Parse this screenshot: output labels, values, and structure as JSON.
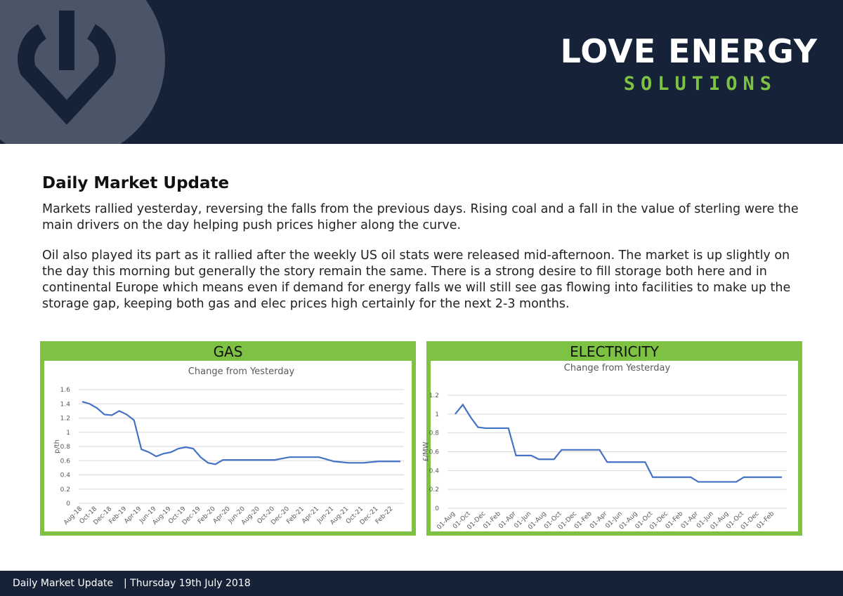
{
  "header": {
    "brand": "LOVE ENERGY",
    "tagline": "SOLUTIONS"
  },
  "article": {
    "title": "Daily Market Update",
    "paragraphs": [
      "Markets rallied yesterday, reversing the falls from the previous days. Rising coal and a fall in the value of sterling were the main drivers on the day helping push prices higher along the curve.",
      "Oil also played its part as it rallied after the weekly US oil stats were released mid-afternoon. The market is up slightly on the day this morning but generally the story remain the same. There is a strong desire to fill storage both here and in continental Europe which means even if demand for energy falls we will still see gas flowing into facilities to make up the storage gap, keeping both gas and elec prices high certainly for the next 2-3 months."
    ]
  },
  "charts": [
    {
      "type": "line",
      "panel_title": "GAS",
      "title": "Change from Yesterday",
      "ylabel": "p/th",
      "color": "#4472c4",
      "categories": [
        "Aug-18",
        null,
        "Oct-18",
        null,
        "Dec-18",
        null,
        "Feb-19",
        null,
        "Apr-19",
        null,
        "Jun-19",
        null,
        "Aug-19",
        null,
        "Oct-19",
        null,
        "Dec-19",
        null,
        "Feb-20",
        null,
        "Apr-20",
        null,
        "Jun-20",
        null,
        "Aug-20",
        null,
        "Oct-20",
        null,
        "Dec-20",
        null,
        "Feb-21",
        null,
        "Apr-21",
        null,
        "Jun-21",
        null,
        "Aug-21",
        null,
        "Oct-21",
        null,
        "Dec-21",
        null,
        "Feb-22",
        null
      ],
      "values": [
        1.43,
        1.4,
        1.34,
        1.25,
        1.24,
        1.3,
        1.25,
        1.17,
        0.76,
        0.72,
        0.66,
        0.7,
        0.72,
        0.77,
        0.79,
        0.77,
        0.65,
        0.57,
        0.55,
        0.61,
        0.61,
        0.61,
        0.61,
        0.61,
        0.61,
        0.61,
        0.61,
        0.63,
        0.65,
        0.65,
        0.65,
        0.65,
        0.65,
        0.62,
        0.59,
        0.58,
        0.57,
        0.57,
        0.57,
        0.58,
        0.59,
        0.59,
        0.59,
        0.59
      ],
      "ylim": [
        0,
        1.6
      ],
      "yticks": [
        0,
        0.2,
        0.4,
        0.6,
        0.8,
        1,
        1.2,
        1.4,
        1.6
      ],
      "grid": true
    },
    {
      "type": "line",
      "panel_title": "ELECTRICITY",
      "title": "Change from Yesterday",
      "ylabel": "£/MW",
      "color": "#4472c4",
      "categories": [
        "01-Aug",
        null,
        "01-Oct",
        null,
        "01-Dec",
        null,
        "01-Feb",
        null,
        "01-Apr",
        null,
        "01-Jun",
        null,
        "01-Aug",
        null,
        "01-Oct",
        null,
        "01-Dec",
        null,
        "01-Feb",
        null,
        "01-Apr",
        null,
        "01-Jun",
        null,
        "01-Aug",
        null,
        "01-Oct",
        null,
        "01-Dec",
        null,
        "01-Feb",
        null,
        "01-Apr",
        null,
        "01-Jun",
        null,
        "01-Aug",
        null,
        "01-Oct",
        null,
        "01-Dec",
        null,
        "01-Feb",
        null
      ],
      "values": [
        1.0,
        1.1,
        0.97,
        0.86,
        0.85,
        0.85,
        0.85,
        0.85,
        0.56,
        0.56,
        0.56,
        0.52,
        0.52,
        0.52,
        0.62,
        0.62,
        0.62,
        0.62,
        0.62,
        0.62,
        0.49,
        0.49,
        0.49,
        0.49,
        0.49,
        0.49,
        0.33,
        0.33,
        0.33,
        0.33,
        0.33,
        0.33,
        0.28,
        0.28,
        0.28,
        0.28,
        0.28,
        0.28,
        0.33,
        0.33,
        0.33,
        0.33,
        0.33,
        0.33
      ],
      "ylim": [
        0,
        1.2
      ],
      "yticks": [
        0,
        0.2,
        0.4,
        0.6,
        0.8,
        1,
        1.2
      ],
      "grid": true
    }
  ],
  "footer": {
    "label": "Daily Market Update",
    "date": "| Thursday 19th July 2018"
  }
}
